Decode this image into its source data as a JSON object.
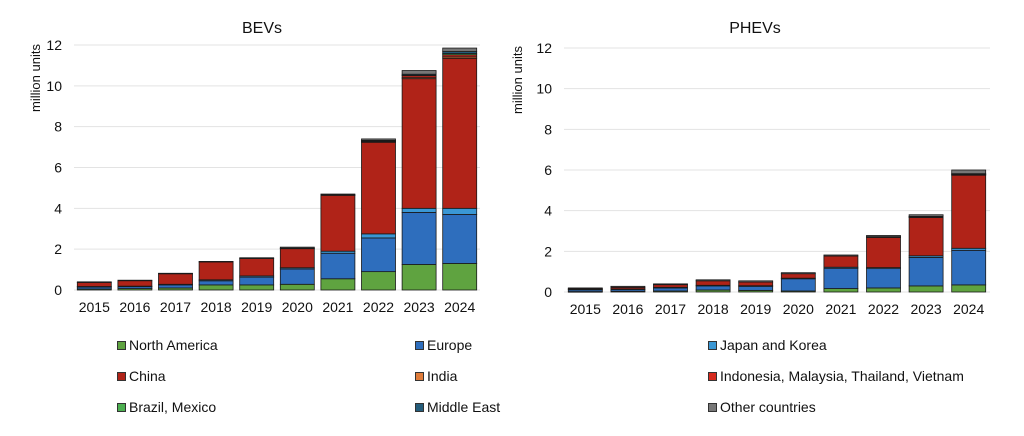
{
  "chart_data": [
    {
      "type": "bar",
      "stacked": true,
      "title": "BEVs",
      "xlabel": "",
      "ylabel": "million units",
      "ylim": [
        0,
        12
      ],
      "yticks": [
        0,
        2,
        4,
        6,
        8,
        10,
        12
      ],
      "grid": true,
      "categories": [
        "2015",
        "2016",
        "2017",
        "2018",
        "2019",
        "2020",
        "2021",
        "2022",
        "2023",
        "2024"
      ],
      "series": [
        {
          "name": "North America",
          "values": [
            0.05,
            0.07,
            0.1,
            0.25,
            0.25,
            0.28,
            0.55,
            0.9,
            1.25,
            1.3
          ]
        },
        {
          "name": "Europe",
          "values": [
            0.1,
            0.1,
            0.15,
            0.2,
            0.38,
            0.75,
            1.25,
            1.65,
            2.55,
            2.4
          ]
        },
        {
          "name": "Japan and Korea",
          "values": [
            0.02,
            0.02,
            0.03,
            0.05,
            0.06,
            0.06,
            0.1,
            0.2,
            0.2,
            0.3
          ]
        },
        {
          "name": "China",
          "values": [
            0.2,
            0.27,
            0.52,
            0.88,
            0.85,
            0.95,
            2.75,
            4.5,
            6.35,
            7.35
          ]
        },
        {
          "name": "India",
          "values": [
            0,
            0,
            0,
            0,
            0,
            0,
            0,
            0.01,
            0.05,
            0.07
          ]
        },
        {
          "name": "Indonesia, Malaysia, Thailand, Vietnam",
          "values": [
            0,
            0,
            0,
            0,
            0,
            0.01,
            0.01,
            0.04,
            0.1,
            0.1
          ]
        },
        {
          "name": "Brazil, Mexico",
          "values": [
            0,
            0,
            0,
            0,
            0,
            0,
            0,
            0.01,
            0.02,
            0.06
          ]
        },
        {
          "name": "Middle East",
          "values": [
            0,
            0,
            0,
            0,
            0,
            0,
            0,
            0.02,
            0.05,
            0.1
          ]
        },
        {
          "name": "Other countries",
          "values": [
            0.03,
            0.02,
            0.02,
            0.02,
            0.04,
            0.05,
            0.04,
            0.07,
            0.18,
            0.17
          ]
        }
      ]
    },
    {
      "type": "bar",
      "stacked": true,
      "title": "PHEVs",
      "xlabel": "",
      "ylabel": "million units",
      "ylim": [
        0,
        12
      ],
      "yticks": [
        0,
        2,
        4,
        6,
        8,
        10,
        12
      ],
      "grid": true,
      "categories": [
        "2015",
        "2016",
        "2017",
        "2018",
        "2019",
        "2020",
        "2021",
        "2022",
        "2023",
        "2024"
      ],
      "series": [
        {
          "name": "North America",
          "values": [
            0.02,
            0.04,
            0.05,
            0.1,
            0.08,
            0.05,
            0.17,
            0.2,
            0.3,
            0.35
          ]
        },
        {
          "name": "Europe",
          "values": [
            0.1,
            0.1,
            0.15,
            0.2,
            0.2,
            0.6,
            1.0,
            0.95,
            1.4,
            1.7
          ]
        },
        {
          "name": "Japan and Korea",
          "values": [
            0.01,
            0.01,
            0.03,
            0.03,
            0.03,
            0.03,
            0.05,
            0.05,
            0.08,
            0.1
          ]
        },
        {
          "name": "China",
          "values": [
            0.05,
            0.08,
            0.13,
            0.22,
            0.18,
            0.22,
            0.55,
            1.5,
            1.9,
            3.6
          ]
        },
        {
          "name": "India",
          "values": [
            0,
            0,
            0,
            0,
            0,
            0,
            0,
            0,
            0,
            0
          ]
        },
        {
          "name": "Indonesia, Malaysia, Thailand, Vietnam",
          "values": [
            0,
            0,
            0,
            0,
            0,
            0,
            0,
            0.01,
            0.01,
            0.02
          ]
        },
        {
          "name": "Brazil, Mexico",
          "values": [
            0,
            0,
            0,
            0,
            0,
            0,
            0,
            0.01,
            0.02,
            0.03
          ]
        },
        {
          "name": "Middle East",
          "values": [
            0,
            0,
            0,
            0,
            0,
            0,
            0,
            0,
            0.01,
            0.02
          ]
        },
        {
          "name": "Other countries",
          "values": [
            0.02,
            0.05,
            0.04,
            0.05,
            0.06,
            0.05,
            0.05,
            0.06,
            0.08,
            0.18
          ]
        }
      ]
    }
  ],
  "legend": {
    "placement": "bottom",
    "items": [
      {
        "name": "North America",
        "color": "#5fa340"
      },
      {
        "name": "Europe",
        "color": "#2e6ebd"
      },
      {
        "name": "Japan and Korea",
        "color": "#3a97d4"
      },
      {
        "name": "China",
        "color": "#b02318"
      },
      {
        "name": "India",
        "color": "#e07c3a"
      },
      {
        "name": "Indonesia, Malaysia, Thailand, Vietnam",
        "color": "#d62a1e"
      },
      {
        "name": "Brazil, Mexico",
        "color": "#4caf50"
      },
      {
        "name": "Middle East",
        "color": "#245c7a"
      },
      {
        "name": "Other countries",
        "color": "#777777"
      }
    ]
  },
  "colors": {
    "segment_border": "#1a1a1a",
    "gridline": "#e3e3e3"
  }
}
